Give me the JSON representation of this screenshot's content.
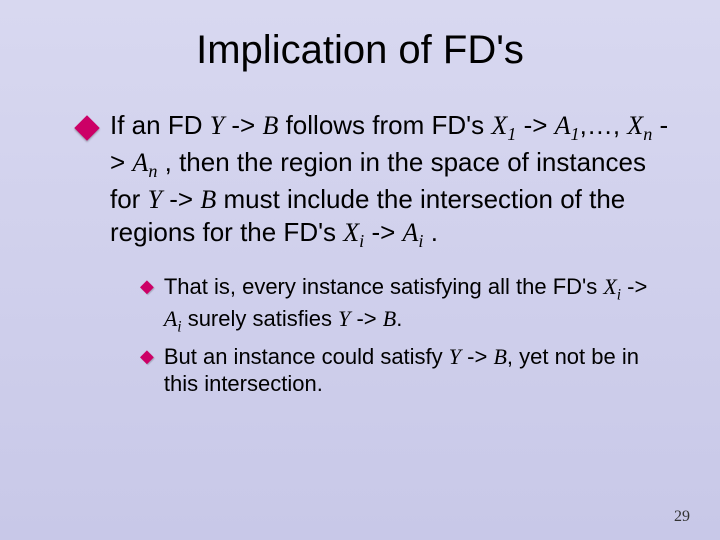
{
  "title": "Implication of FD's",
  "main": {
    "prefix": "If an FD ",
    "fd1_lhs": "Y",
    "arrow": " -> ",
    "fd1_rhs": "B",
    "mid1": "  follows from FD's      ",
    "x1": "X",
    "sub1": "1",
    "a1": "A",
    "suba1": "1",
    "ellipsis": ",…, ",
    "xn": "X",
    "subn": "n",
    "an": "A",
    "suban": "n",
    "mid2": " , then the region in the space of instances for ",
    "y2": "Y",
    "b2": "B",
    "mid3": "  must include the intersection of the regions for the FD's ",
    "xi": "X",
    "subi": "i",
    "ai": "A",
    "subai": "i",
    "period": " ."
  },
  "sub1": {
    "prefix": "That is, every instance satisfying all the FD's ",
    "xi": "X",
    "subi": "i",
    "ai": "A",
    "subai": "i",
    "mid": " surely satisfies ",
    "y": "Y",
    "b": "B",
    "period": "."
  },
  "sub2": {
    "prefix": "But an instance could satisfy ",
    "y": "Y",
    "b": "B",
    "suffix": ", yet not be in this intersection."
  },
  "pageNumber": "29",
  "colors": {
    "accent": "#cc0066",
    "bg_top": "#d8d8f0",
    "bg_bottom": "#c8c8e8"
  }
}
